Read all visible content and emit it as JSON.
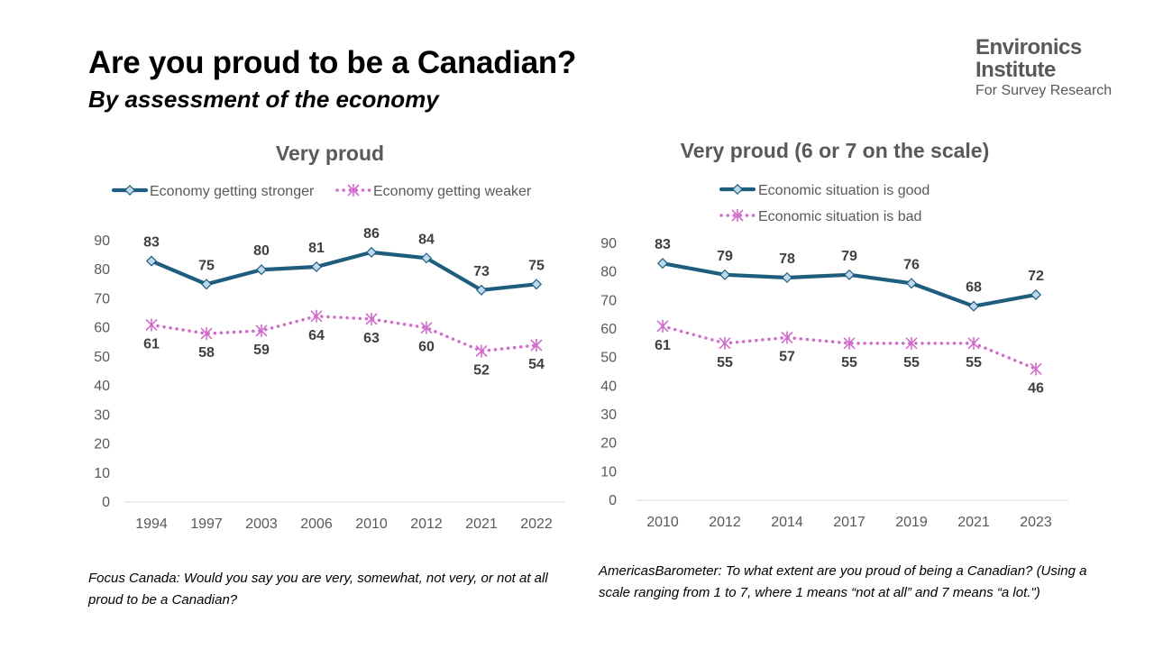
{
  "title": "Are you proud to be a Canadian?",
  "subtitle": "By assessment of the economy",
  "logo": {
    "line1": "Environics",
    "line2": "Institute",
    "line3": "For Survey Research"
  },
  "colors": {
    "series_a": "#1f5d7e",
    "series_b": "#d06dcb",
    "marker_fill": "#bcd9ef",
    "grid": "#d9d9d9",
    "text": "#595959"
  },
  "notes": {
    "left": "Focus Canada: Would you say you are very, somewhat, not very, or not at all proud to be a Canadian?",
    "right": "AmericasBarometer: To what extent are you proud of being a Canadian? (Using a scale ranging from 1 to 7, where 1 means “not at all” and 7 means “a lot.\")"
  },
  "chart_data": [
    {
      "type": "line",
      "title": "Very proud",
      "categories": [
        "1994",
        "1997",
        "2003",
        "2006",
        "2010",
        "2012",
        "2021",
        "2022"
      ],
      "ylim": [
        0,
        90
      ],
      "yticks": [
        "0",
        "10",
        "20",
        "30",
        "40",
        "50",
        "60",
        "70",
        "80",
        "90"
      ],
      "grid": false,
      "legend_position": "top",
      "series": [
        {
          "name": "Economy getting stronger",
          "values": [
            83,
            75,
            80,
            81,
            86,
            84,
            73,
            75
          ],
          "labels": [
            "83",
            "75",
            "80",
            "81",
            "86",
            "84",
            "73",
            "75"
          ],
          "label_position": "above",
          "style": "solid",
          "marker": "diamond"
        },
        {
          "name": "Economy getting weaker",
          "values": [
            61,
            58,
            59,
            64,
            63,
            60,
            52,
            54
          ],
          "labels": [
            "61",
            "58",
            "59",
            "64",
            "63",
            "60",
            "52",
            "54"
          ],
          "label_position": "below",
          "style": "dotted",
          "marker": "star"
        }
      ]
    },
    {
      "type": "line",
      "title": "Very proud (6 or 7 on the scale)",
      "categories": [
        "2010",
        "2012",
        "2014",
        "2017",
        "2019",
        "2021",
        "2023"
      ],
      "ylim": [
        0,
        90
      ],
      "yticks": [
        "0",
        "10",
        "20",
        "30",
        "40",
        "50",
        "60",
        "70",
        "80",
        "90"
      ],
      "grid": false,
      "legend_position": "top",
      "series": [
        {
          "name": "Economic situation is good",
          "values": [
            83,
            79,
            78,
            79,
            76,
            68,
            72
          ],
          "labels": [
            "83",
            "79",
            "78",
            "79",
            "76",
            "68",
            "72"
          ],
          "label_position": "above",
          "style": "solid",
          "marker": "diamond"
        },
        {
          "name": "Economic situation is bad",
          "values": [
            61,
            55,
            57,
            55,
            55,
            55,
            46
          ],
          "labels": [
            "61",
            "55",
            "57",
            "55",
            "55",
            "55",
            "46"
          ],
          "label_position": "below",
          "style": "dotted",
          "marker": "star"
        }
      ]
    }
  ]
}
